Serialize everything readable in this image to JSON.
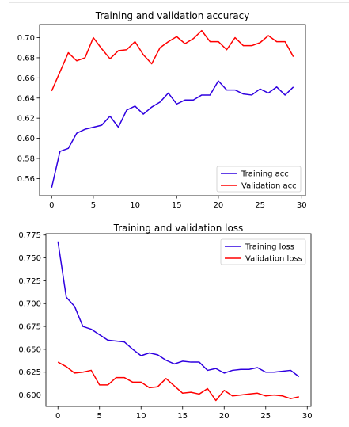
{
  "chart_data": [
    {
      "type": "line",
      "title": "Training and validation accuracy",
      "xlabel": "",
      "ylabel": "",
      "xlim": [
        -1.45,
        30.45
      ],
      "ylim": [
        0.543,
        0.713
      ],
      "xticks": [
        0,
        5,
        10,
        15,
        20,
        25,
        30
      ],
      "yticks": [
        0.56,
        0.58,
        0.6,
        0.62,
        0.64,
        0.66,
        0.68,
        0.7
      ],
      "xtick_labels": [
        "0",
        "5",
        "10",
        "15",
        "20",
        "25",
        "30"
      ],
      "ytick_labels": [
        "0.56",
        "0.58",
        "0.60",
        "0.62",
        "0.64",
        "0.66",
        "0.68",
        "0.70"
      ],
      "grid": false,
      "legend_position": "lower-right",
      "x": [
        0,
        1,
        2,
        3,
        4,
        5,
        6,
        7,
        8,
        9,
        10,
        11,
        12,
        13,
        14,
        15,
        16,
        17,
        18,
        19,
        20,
        21,
        22,
        23,
        24,
        25,
        26,
        27,
        28,
        29
      ],
      "series": [
        {
          "name": "Training acc",
          "color": "#2f00e0",
          "values": [
            0.551,
            0.587,
            0.59,
            0.605,
            0.609,
            0.611,
            0.613,
            0.622,
            0.611,
            0.628,
            0.632,
            0.624,
            0.631,
            0.636,
            0.645,
            0.634,
            0.638,
            0.638,
            0.643,
            0.643,
            0.657,
            0.648,
            0.648,
            0.644,
            0.643,
            0.649,
            0.645,
            0.651,
            0.643,
            0.651
          ]
        },
        {
          "name": "Validation acc",
          "color": "#ff0000",
          "values": [
            0.647,
            0.666,
            0.685,
            0.677,
            0.68,
            0.7,
            0.689,
            0.679,
            0.687,
            0.688,
            0.696,
            0.683,
            0.674,
            0.69,
            0.696,
            0.701,
            0.694,
            0.699,
            0.707,
            0.696,
            0.696,
            0.688,
            0.7,
            0.692,
            0.692,
            0.695,
            0.702,
            0.696,
            0.696,
            0.681
          ]
        }
      ]
    },
    {
      "type": "line",
      "title": "Training and validation loss",
      "xlabel": "",
      "ylabel": "",
      "xlim": [
        -1.45,
        30.45
      ],
      "ylim": [
        0.5875,
        0.7765
      ],
      "xticks": [
        0,
        5,
        10,
        15,
        20,
        25,
        30
      ],
      "yticks": [
        0.6,
        0.625,
        0.65,
        0.675,
        0.7,
        0.725,
        0.75,
        0.775
      ],
      "xtick_labels": [
        "0",
        "5",
        "10",
        "15",
        "20",
        "25",
        "30"
      ],
      "ytick_labels": [
        "0.600",
        "0.625",
        "0.650",
        "0.675",
        "0.700",
        "0.725",
        "0.750",
        "0.775"
      ],
      "grid": false,
      "legend_position": "upper-right",
      "x": [
        0,
        1,
        2,
        3,
        4,
        5,
        6,
        7,
        8,
        9,
        10,
        11,
        12,
        13,
        14,
        15,
        16,
        17,
        18,
        19,
        20,
        21,
        22,
        23,
        24,
        25,
        26,
        27,
        28,
        29
      ],
      "series": [
        {
          "name": "Training loss",
          "color": "#2f00e0",
          "values": [
            0.768,
            0.707,
            0.697,
            0.675,
            0.672,
            0.666,
            0.66,
            0.659,
            0.658,
            0.65,
            0.643,
            0.646,
            0.644,
            0.638,
            0.634,
            0.637,
            0.636,
            0.636,
            0.627,
            0.629,
            0.624,
            0.627,
            0.628,
            0.628,
            0.63,
            0.625,
            0.625,
            0.626,
            0.627,
            0.62
          ]
        },
        {
          "name": "Validation loss",
          "color": "#ff0000",
          "values": [
            0.636,
            0.631,
            0.624,
            0.625,
            0.627,
            0.611,
            0.611,
            0.619,
            0.619,
            0.614,
            0.614,
            0.608,
            0.609,
            0.618,
            0.61,
            0.602,
            0.603,
            0.601,
            0.607,
            0.594,
            0.605,
            0.599,
            0.6,
            0.601,
            0.602,
            0.599,
            0.6,
            0.599,
            0.596,
            0.598
          ]
        }
      ]
    }
  ]
}
